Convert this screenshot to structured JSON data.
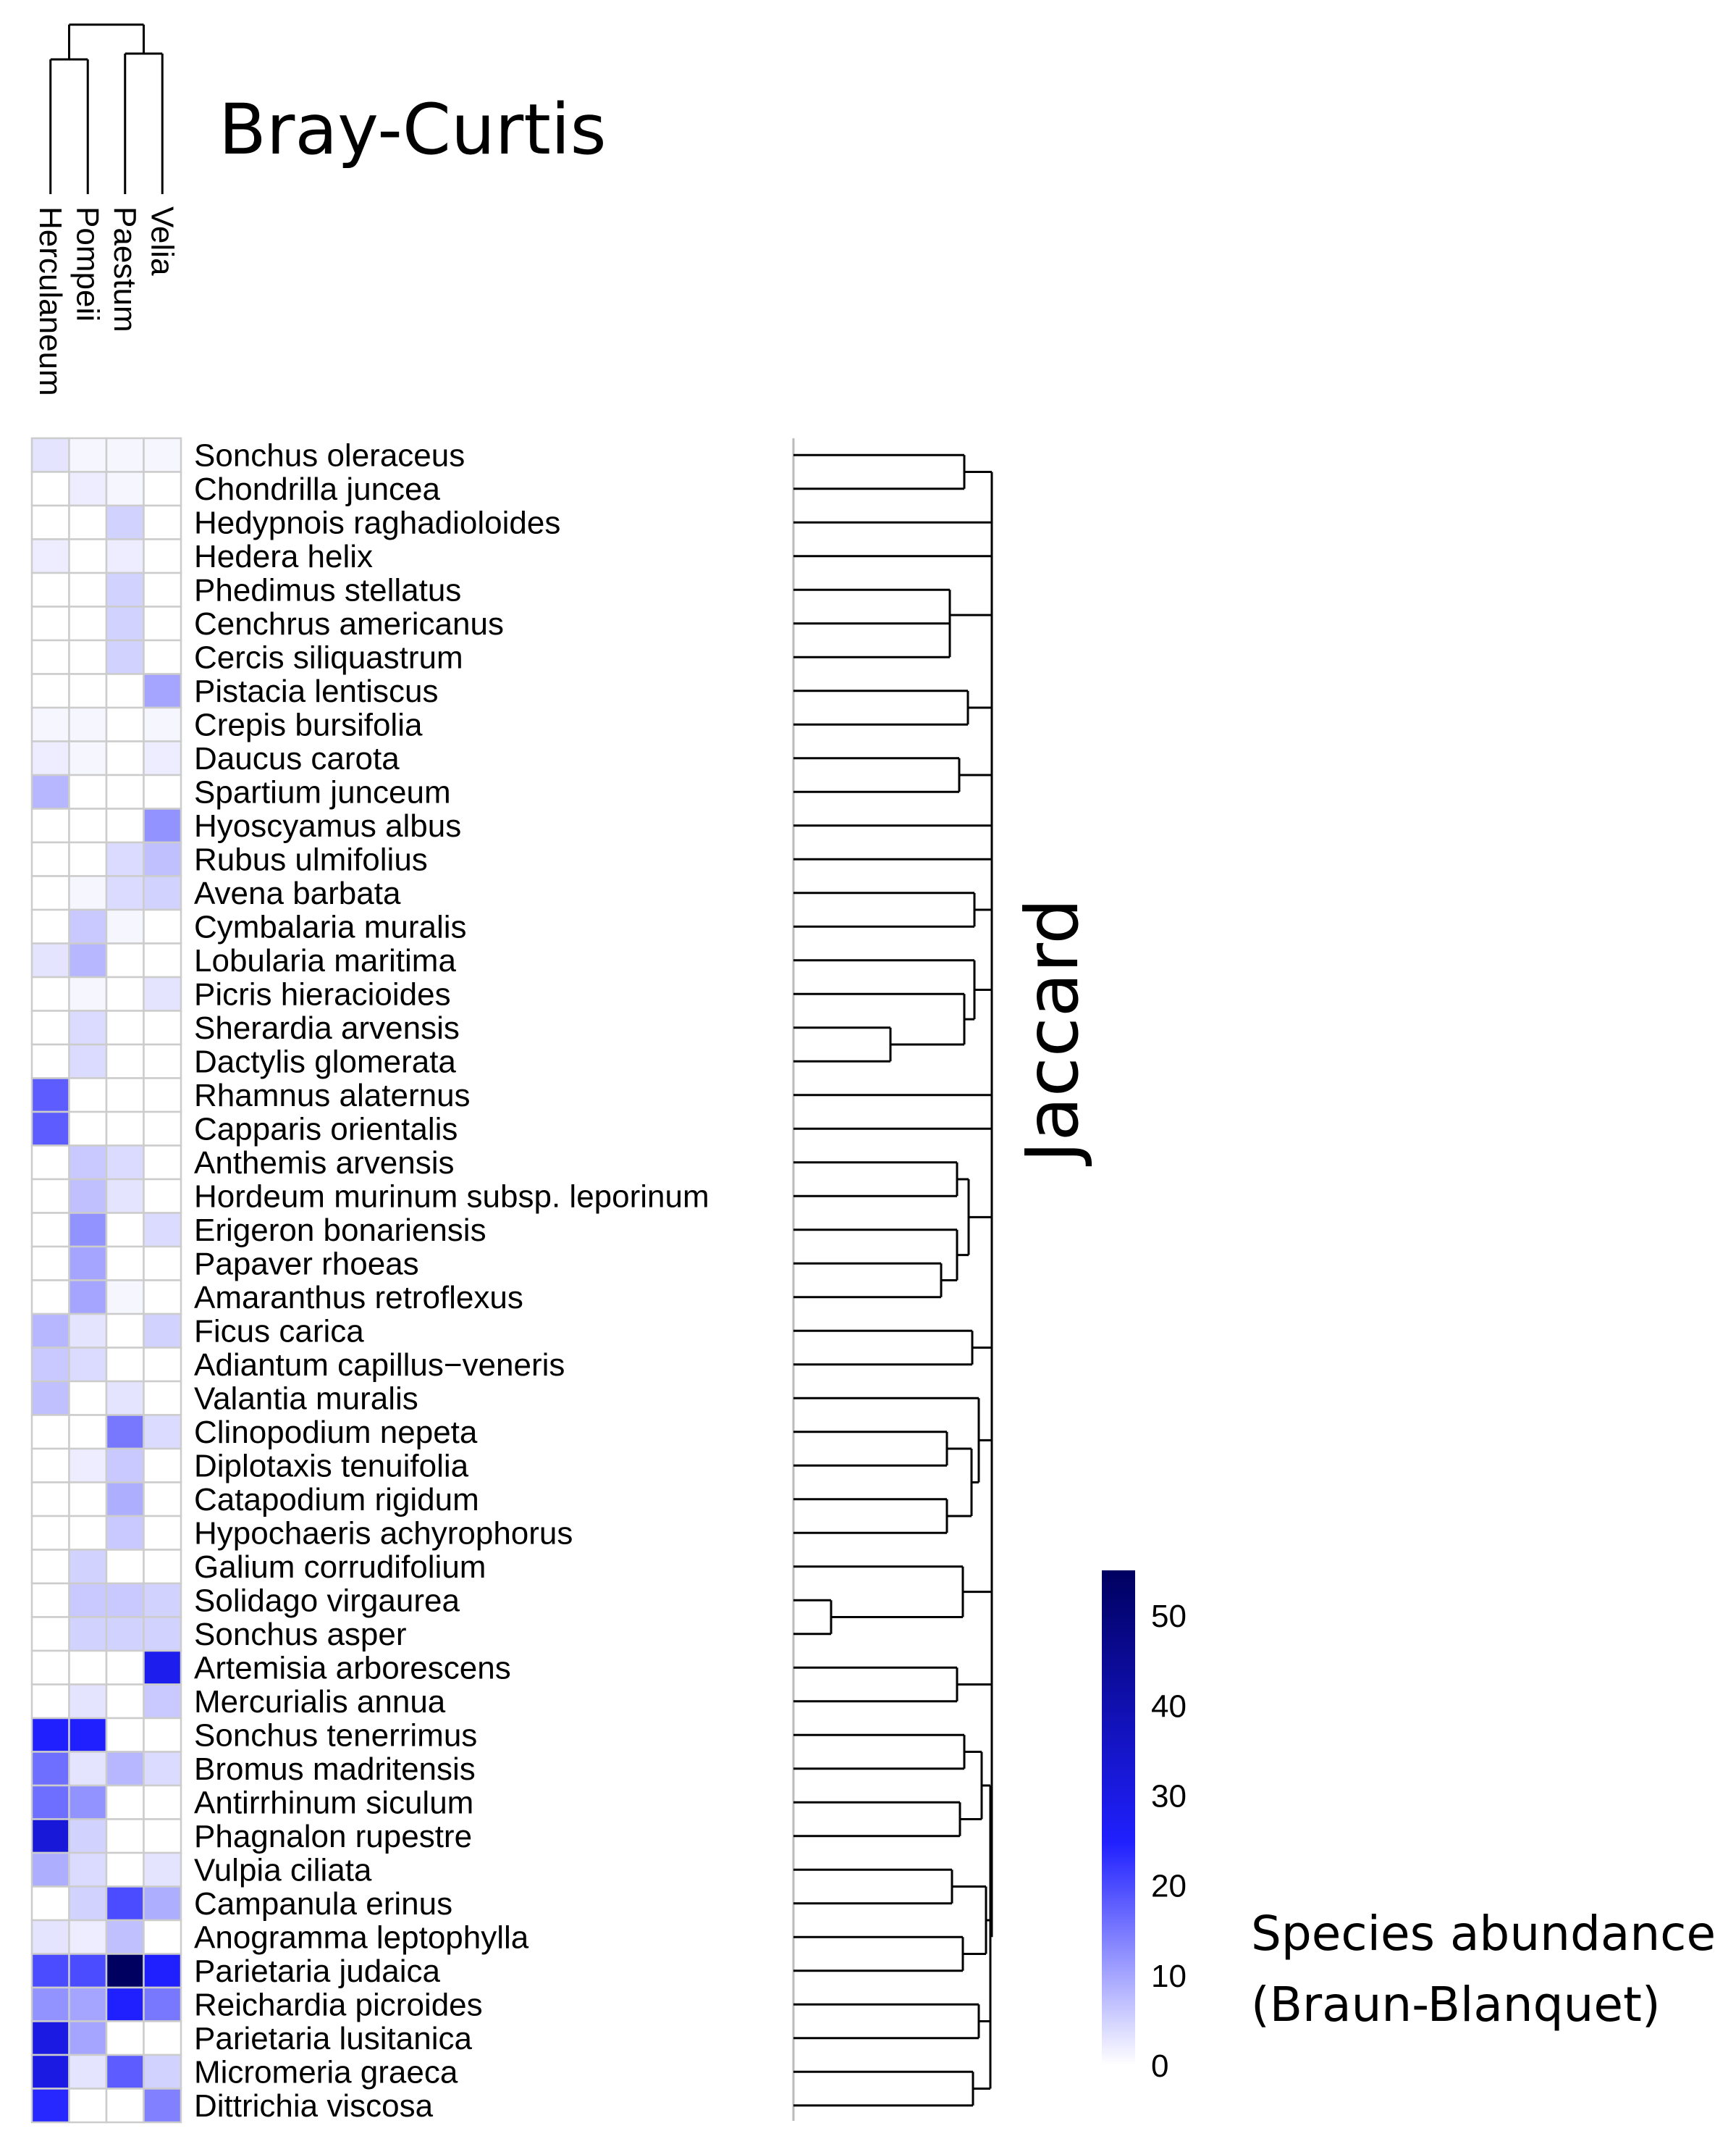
{
  "chart_data": {
    "type": "heatmap",
    "titles": {
      "column_dendrogram": "Bray-Curtis",
      "row_dendrogram": "Jaccard"
    },
    "columns": [
      "Herculaneum",
      "Pompeii",
      "Paestum",
      "Velia"
    ],
    "rows": [
      "Sonchus oleraceus",
      "Chondrilla juncea",
      "Hedypnois raghadioloides",
      "Hedera helix",
      "Phedimus stellatus",
      "Cenchrus americanus",
      "Cercis siliquastrum",
      "Pistacia lentiscus",
      "Crepis bursifolia",
      "Daucus carota",
      "Spartium junceum",
      "Hyoscyamus albus",
      "Rubus ulmifolius",
      "Avena barbata",
      "Cymbalaria muralis",
      "Lobularia maritima",
      "Picris hieracioides",
      "Sherardia arvensis",
      "Dactylis glomerata",
      "Rhamnus alaternus",
      "Capparis orientalis",
      "Anthemis arvensis",
      "Hordeum murinum subsp. leporinum",
      "Erigeron bonariensis",
      "Papaver rhoeas",
      "Amaranthus retroflexus",
      "Ficus carica",
      "Adiantum capillus−veneris",
      "Valantia muralis",
      "Clinopodium nepeta",
      "Diplotaxis tenuifolia",
      "Catapodium rigidum",
      "Hypochaeris achyrophorus",
      "Galium corrudifolium",
      "Solidago virgaurea",
      "Sonchus asper",
      "Artemisia arborescens",
      "Mercurialis annua",
      "Sonchus tenerrimus",
      "Bromus madritensis",
      "Antirrhinum siculum",
      "Phagnalon rupestre",
      "Vulpia ciliata",
      "Campanula erinus",
      "Anogramma leptophylla",
      "Parietaria judaica",
      "Reichardia picroides",
      "Parietaria lusitanica",
      "Micromeria graeca",
      "Dittrichia viscosa"
    ],
    "values": [
      [
        3,
        1,
        1,
        1
      ],
      [
        0,
        2,
        1,
        0
      ],
      [
        0,
        0,
        5,
        0
      ],
      [
        2,
        0,
        2,
        0
      ],
      [
        0,
        0,
        5,
        0
      ],
      [
        0,
        0,
        5,
        0
      ],
      [
        0,
        0,
        5,
        0
      ],
      [
        0,
        0,
        0,
        10
      ],
      [
        1,
        1,
        0,
        1
      ],
      [
        2,
        1,
        0,
        2
      ],
      [
        8,
        0,
        0,
        0
      ],
      [
        0,
        0,
        0,
        12
      ],
      [
        0,
        0,
        4,
        7
      ],
      [
        0,
        1,
        4,
        5
      ],
      [
        0,
        6,
        1,
        0
      ],
      [
        3,
        8,
        0,
        0
      ],
      [
        0,
        1,
        0,
        3
      ],
      [
        0,
        4,
        0,
        0
      ],
      [
        0,
        4,
        0,
        0
      ],
      [
        18,
        0,
        0,
        0
      ],
      [
        18,
        0,
        0,
        0
      ],
      [
        0,
        6,
        4,
        0
      ],
      [
        0,
        7,
        3,
        0
      ],
      [
        0,
        12,
        0,
        4
      ],
      [
        0,
        10,
        0,
        0
      ],
      [
        0,
        10,
        1,
        0
      ],
      [
        8,
        3,
        0,
        5
      ],
      [
        6,
        4,
        0,
        0
      ],
      [
        7,
        0,
        3,
        0
      ],
      [
        0,
        0,
        15,
        4
      ],
      [
        0,
        2,
        6,
        0
      ],
      [
        0,
        0,
        9,
        0
      ],
      [
        0,
        0,
        6,
        0
      ],
      [
        0,
        5,
        0,
        0
      ],
      [
        0,
        6,
        6,
        5
      ],
      [
        0,
        5,
        5,
        5
      ],
      [
        0,
        0,
        0,
        28
      ],
      [
        0,
        3,
        0,
        6
      ],
      [
        25,
        25,
        0,
        0
      ],
      [
        16,
        3,
        8,
        4
      ],
      [
        16,
        12,
        0,
        0
      ],
      [
        32,
        5,
        0,
        0
      ],
      [
        9,
        4,
        0,
        3
      ],
      [
        0,
        5,
        20,
        9
      ],
      [
        3,
        2,
        7,
        0
      ],
      [
        20,
        20,
        55,
        25
      ],
      [
        12,
        10,
        25,
        15
      ],
      [
        30,
        10,
        0,
        0
      ],
      [
        30,
        3,
        18,
        5
      ],
      [
        24,
        0,
        0,
        14
      ]
    ],
    "colorbar": {
      "label_line1": "Species abundance",
      "label_line2": "(Braun-Blanquet)",
      "range": [
        0,
        55
      ],
      "ticks": [
        "0",
        "10",
        "20",
        "30",
        "40",
        "50"
      ],
      "colors": [
        "#ffffff",
        "#2020ff",
        "#000060"
      ]
    },
    "grid_color": "#cccccc",
    "line_color": "#000000"
  }
}
